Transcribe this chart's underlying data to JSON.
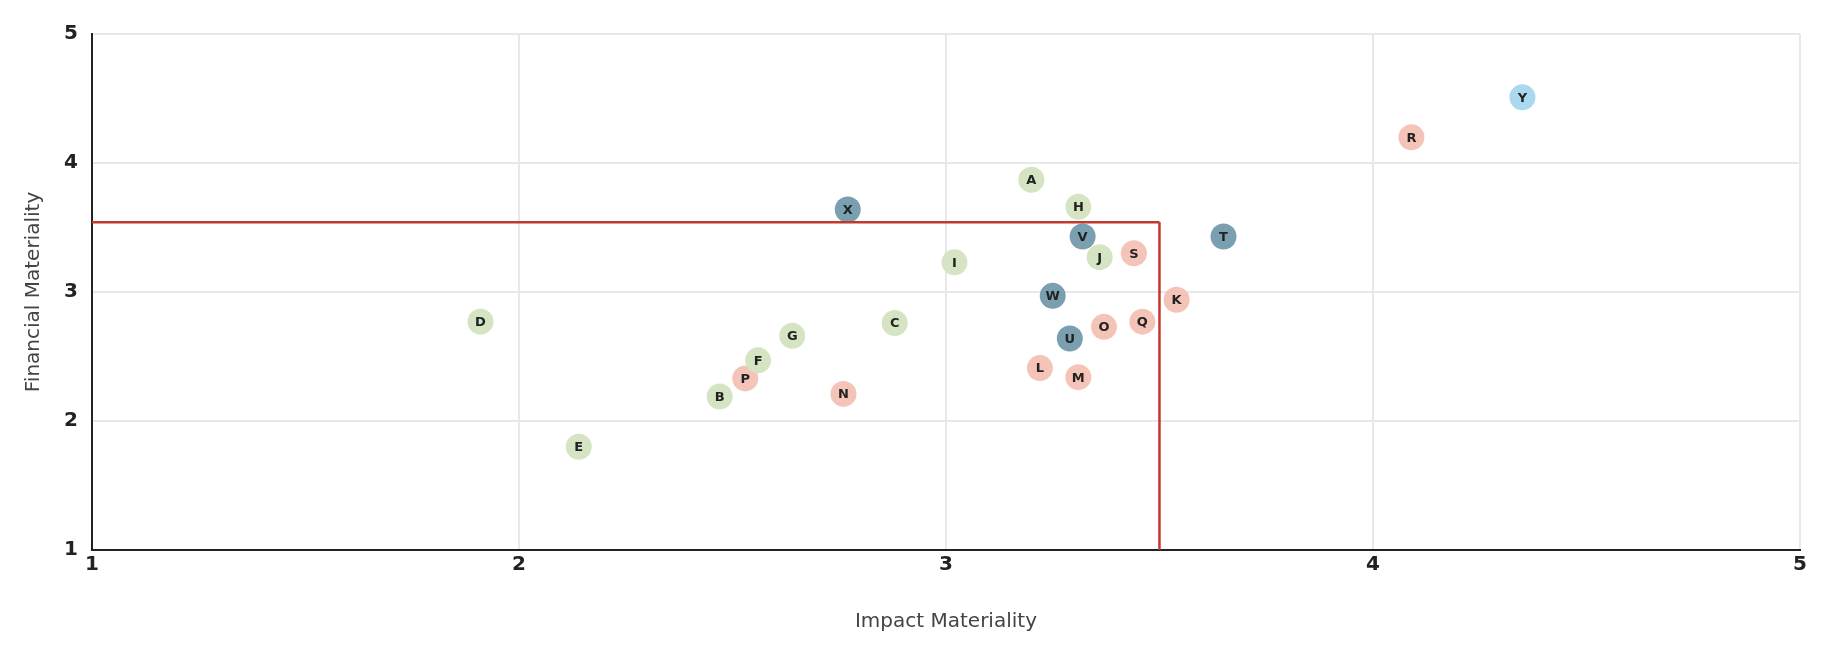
{
  "chart_data": {
    "type": "scatter",
    "xlabel": "Impact Materiality",
    "ylabel": "Financial Materiality",
    "xlim": [
      1,
      5
    ],
    "xticks": [
      1,
      2,
      3,
      4,
      5
    ],
    "ylim": [
      1,
      5
    ],
    "yticks": [
      1,
      2,
      3,
      4,
      5
    ],
    "grid": true,
    "legend": false,
    "marker": "circle",
    "series": [
      {
        "color": "#d5e4c2",
        "x": [
          3.2,
          3.31,
          3.36,
          3.02,
          1.91,
          2.88,
          2.64,
          2.56,
          2.47,
          2.14
        ],
        "values": [
          3.87,
          3.66,
          3.27,
          3.23,
          2.77,
          2.76,
          2.66,
          2.47,
          2.19,
          1.8
        ]
      },
      {
        "color": "#f5c4b8",
        "x": [
          3.44,
          3.54,
          3.37,
          3.46,
          2.53,
          3.22,
          3.31,
          2.76,
          4.09
        ],
        "values": [
          3.3,
          2.94,
          2.73,
          2.77,
          2.33,
          2.41,
          2.34,
          2.21,
          4.2
        ]
      },
      {
        "color": "#7a9fb0",
        "x": [
          2.77,
          3.32,
          3.65,
          3.25,
          3.29
        ],
        "values": [
          3.64,
          3.43,
          3.43,
          2.97,
          2.64
        ]
      },
      {
        "color": "#a9d8ef",
        "x": [
          4.35
        ],
        "values": [
          4.51
        ]
      }
    ],
    "annotations": [
      {
        "text": "A",
        "x": 3.2,
        "y": 3.87
      },
      {
        "text": "H",
        "x": 3.31,
        "y": 3.66
      },
      {
        "text": "J",
        "x": 3.36,
        "y": 3.27
      },
      {
        "text": "I",
        "x": 3.02,
        "y": 3.23
      },
      {
        "text": "D",
        "x": 1.91,
        "y": 2.77
      },
      {
        "text": "C",
        "x": 2.88,
        "y": 2.76
      },
      {
        "text": "G",
        "x": 2.64,
        "y": 2.66
      },
      {
        "text": "F",
        "x": 2.56,
        "y": 2.47
      },
      {
        "text": "B",
        "x": 2.47,
        "y": 2.19
      },
      {
        "text": "E",
        "x": 2.14,
        "y": 1.8
      },
      {
        "text": "S",
        "x": 3.44,
        "y": 3.3
      },
      {
        "text": "K",
        "x": 3.54,
        "y": 2.94
      },
      {
        "text": "O",
        "x": 3.37,
        "y": 2.73
      },
      {
        "text": "Q",
        "x": 3.46,
        "y": 2.77
      },
      {
        "text": "P",
        "x": 2.53,
        "y": 2.33
      },
      {
        "text": "L",
        "x": 3.22,
        "y": 2.41
      },
      {
        "text": "M",
        "x": 3.31,
        "y": 2.34
      },
      {
        "text": "N",
        "x": 2.76,
        "y": 2.21
      },
      {
        "text": "R",
        "x": 4.09,
        "y": 4.2
      },
      {
        "text": "X",
        "x": 2.77,
        "y": 3.64
      },
      {
        "text": "V",
        "x": 3.32,
        "y": 3.43
      },
      {
        "text": "T",
        "x": 3.65,
        "y": 3.43
      },
      {
        "text": "W",
        "x": 3.25,
        "y": 2.97
      },
      {
        "text": "U",
        "x": 3.29,
        "y": 2.64
      },
      {
        "text": "Y",
        "x": 4.35,
        "y": 4.51
      }
    ],
    "ref_lines": [
      {
        "axis": "x",
        "value": 3.5,
        "color": "#c0392b"
      },
      {
        "axis": "y",
        "value": 3.54,
        "color": "#c0392b"
      }
    ]
  }
}
